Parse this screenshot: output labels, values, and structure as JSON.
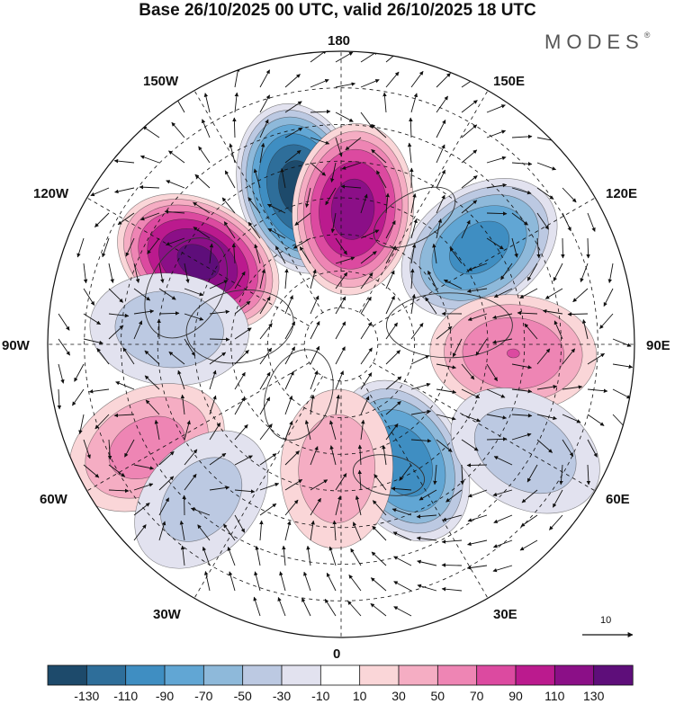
{
  "header": {
    "title": "Base 26/10/2025 00 UTC, valid 26/10/2025 18 UTC",
    "brand": "MODES",
    "brand_mark": "®"
  },
  "longitude_labels": {
    "top": "180",
    "bottom": "0",
    "left": "90W",
    "right": "90E",
    "upper_left_1": "150W",
    "upper_left_2": "120W",
    "lower_left_1": "60W",
    "lower_left_2": "30W",
    "upper_right_1": "150E",
    "upper_right_2": "120E",
    "lower_right_1": "60E",
    "lower_right_2": "30E"
  },
  "reference_vector": {
    "label": "10"
  },
  "colorbar": {
    "colors": [
      "#1d4a6b",
      "#2e6e9a",
      "#3f8ec2",
      "#61a6d4",
      "#8eb9da",
      "#bcc9e2",
      "#e2e2ef",
      "#ffffff",
      "#fad6d8",
      "#f5adc3",
      "#ee85b4",
      "#dc4aa0",
      "#bb1a8e",
      "#8b0f87",
      "#5e0e7a"
    ],
    "tick_labels": [
      "-130",
      "-110",
      "-90",
      "-70",
      "-50",
      "-30",
      "-10",
      "10",
      "30",
      "50",
      "70",
      "90",
      "110",
      "130"
    ]
  },
  "anomaly_centers": [
    {
      "name": "low-150w",
      "lon": -165,
      "colat": 44,
      "value": -140
    },
    {
      "name": "high-180",
      "lon": 175,
      "colat": 37,
      "value": 120
    },
    {
      "name": "high-120w",
      "lon": -120,
      "colat": 45,
      "value": 135
    },
    {
      "name": "low-120e",
      "lon": 125,
      "colat": 46,
      "value": -100
    },
    {
      "name": "high-90e",
      "lon": 87,
      "colat": 47,
      "value": 70
    },
    {
      "name": "low-40e",
      "lon": 28,
      "colat": 36,
      "value": -105
    },
    {
      "name": "high-0",
      "lon": -2,
      "colat": 34,
      "value": 45
    },
    {
      "name": "low-95w",
      "lon": -95,
      "colat": 47,
      "value": -45
    },
    {
      "name": "high-60w",
      "lon": -62,
      "colat": 60,
      "value": 60
    },
    {
      "name": "low-60e",
      "lon": 60,
      "colat": 58,
      "value": -45
    },
    {
      "name": "low-40w",
      "lon": -42,
      "colat": 57,
      "value": -40
    }
  ]
}
